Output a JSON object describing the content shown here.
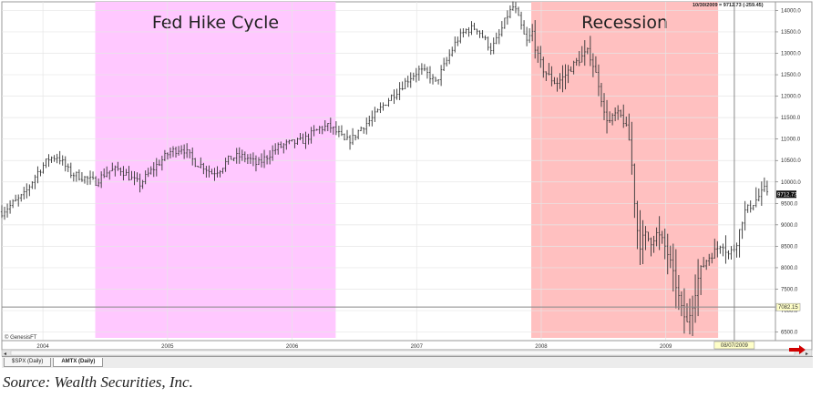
{
  "chart_data": {
    "type": "ohlc",
    "title": "",
    "ylim": [
      6300,
      14200
    ],
    "y_ticks": [
      "6500.0",
      "7000.0",
      "7500.0",
      "8000.0",
      "8500.0",
      "9000.0",
      "9500.0",
      "10000.0",
      "10500.0",
      "11000.0",
      "11500.0",
      "12000.0",
      "12500.0",
      "13000.0",
      "13500.0",
      "14000.0"
    ],
    "y_tick_values": [
      6500,
      7000,
      7500,
      8000,
      8500,
      9000,
      9500,
      10000,
      10500,
      11000,
      11500,
      12000,
      12500,
      13000,
      13500,
      14000
    ],
    "x_ticks": [
      "2004",
      "2005",
      "2006",
      "2007",
      "2008",
      "2009"
    ],
    "x_tick_values": [
      2004.0,
      2005.0,
      2006.0,
      2007.0,
      2008.0,
      2009.0
    ],
    "xlim": [
      2003.67,
      2009.88
    ],
    "anchors": [
      [
        2003.67,
        9300
      ],
      [
        2003.85,
        9700
      ],
      [
        2003.95,
        10200
      ],
      [
        2004.05,
        10550
      ],
      [
        2004.12,
        10600
      ],
      [
        2004.22,
        10200
      ],
      [
        2004.33,
        10100
      ],
      [
        2004.42,
        10000
      ],
      [
        2004.52,
        10250
      ],
      [
        2004.62,
        10300
      ],
      [
        2004.72,
        10050
      ],
      [
        2004.78,
        9950
      ],
      [
        2004.85,
        10200
      ],
      [
        2004.95,
        10500
      ],
      [
        2005.02,
        10700
      ],
      [
        2005.12,
        10800
      ],
      [
        2005.22,
        10450
      ],
      [
        2005.3,
        10350
      ],
      [
        2005.35,
        10200
      ],
      [
        2005.42,
        10300
      ],
      [
        2005.5,
        10550
      ],
      [
        2005.58,
        10600
      ],
      [
        2005.65,
        10550
      ],
      [
        2005.72,
        10400
      ],
      [
        2005.8,
        10600
      ],
      [
        2005.88,
        10800
      ],
      [
        2005.98,
        10900
      ],
      [
        2006.08,
        10950
      ],
      [
        2006.15,
        11100
      ],
      [
        2006.22,
        11250
      ],
      [
        2006.3,
        11300
      ],
      [
        2006.38,
        11100
      ],
      [
        2006.42,
        10950
      ],
      [
        2006.48,
        11000
      ],
      [
        2006.55,
        11250
      ],
      [
        2006.65,
        11500
      ],
      [
        2006.75,
        11850
      ],
      [
        2006.85,
        12150
      ],
      [
        2006.95,
        12450
      ],
      [
        2007.02,
        12600
      ],
      [
        2007.1,
        12500
      ],
      [
        2007.15,
        12300
      ],
      [
        2007.22,
        12700
      ],
      [
        2007.32,
        13300
      ],
      [
        2007.4,
        13550
      ],
      [
        2007.48,
        13600
      ],
      [
        2007.55,
        13300
      ],
      [
        2007.6,
        13100
      ],
      [
        2007.66,
        13400
      ],
      [
        2007.73,
        13900
      ],
      [
        2007.78,
        14100
      ],
      [
        2007.83,
        13700
      ],
      [
        2007.88,
        13250
      ],
      [
        2007.93,
        13500
      ],
      [
        2007.96,
        13000
      ],
      [
        2008.02,
        12600
      ],
      [
        2008.08,
        12400
      ],
      [
        2008.12,
        12300
      ],
      [
        2008.18,
        12450
      ],
      [
        2008.25,
        12700
      ],
      [
        2008.32,
        12900
      ],
      [
        2008.38,
        13050
      ],
      [
        2008.42,
        12700
      ],
      [
        2008.47,
        12200
      ],
      [
        2008.5,
        11600
      ],
      [
        2008.55,
        11400
      ],
      [
        2008.6,
        11600
      ],
      [
        2008.65,
        11500
      ],
      [
        2008.7,
        11100
      ],
      [
        2008.73,
        10300
      ],
      [
        2008.76,
        9100
      ],
      [
        2008.79,
        8500
      ],
      [
        2008.83,
        8800
      ],
      [
        2008.88,
        8600
      ],
      [
        2008.93,
        8800
      ],
      [
        2008.98,
        8600
      ],
      [
        2009.03,
        8200
      ],
      [
        2009.08,
        7600
      ],
      [
        2009.13,
        7000
      ],
      [
        2009.17,
        6700
      ],
      [
        2009.22,
        7200
      ],
      [
        2009.27,
        7900
      ],
      [
        2009.33,
        8200
      ],
      [
        2009.4,
        8400
      ],
      [
        2009.45,
        8600
      ],
      [
        2009.5,
        8300
      ],
      [
        2009.56,
        8500
      ],
      [
        2009.63,
        9300
      ],
      [
        2009.7,
        9500
      ],
      [
        2009.76,
        9700
      ],
      [
        2009.8,
        9850
      ],
      [
        2009.83,
        9712
      ]
    ],
    "bands": [
      {
        "label": "Fed Hike Cycle",
        "x_start": 2004.42,
        "x_end": 2006.35,
        "color": "#ffc8ff"
      },
      {
        "label": "Recession",
        "x_start": 2007.92,
        "x_end": 2009.42,
        "color": "#ffc0c0"
      }
    ],
    "last_value_tag": "9712.73",
    "reference_line_value": 7082.15,
    "reference_line_label": "7082.15",
    "crosshair_x": 2009.55,
    "crosshair_date": "08/07/2009",
    "readout": "10/30/2009 = 9712.73 (-259.45)",
    "watermark": "© GenesisFT",
    "grid": true
  },
  "tabs": [
    "$SPX (Daily)",
    "AMTX (Daily)"
  ],
  "caption": "Source: Wealth Securities, Inc.",
  "colors": {
    "bars": "#333333",
    "grid": "#e6e6e6",
    "tag_bg": "#111111",
    "ref_tag_bg": "#ffffc8",
    "arrow": "#d00000"
  }
}
